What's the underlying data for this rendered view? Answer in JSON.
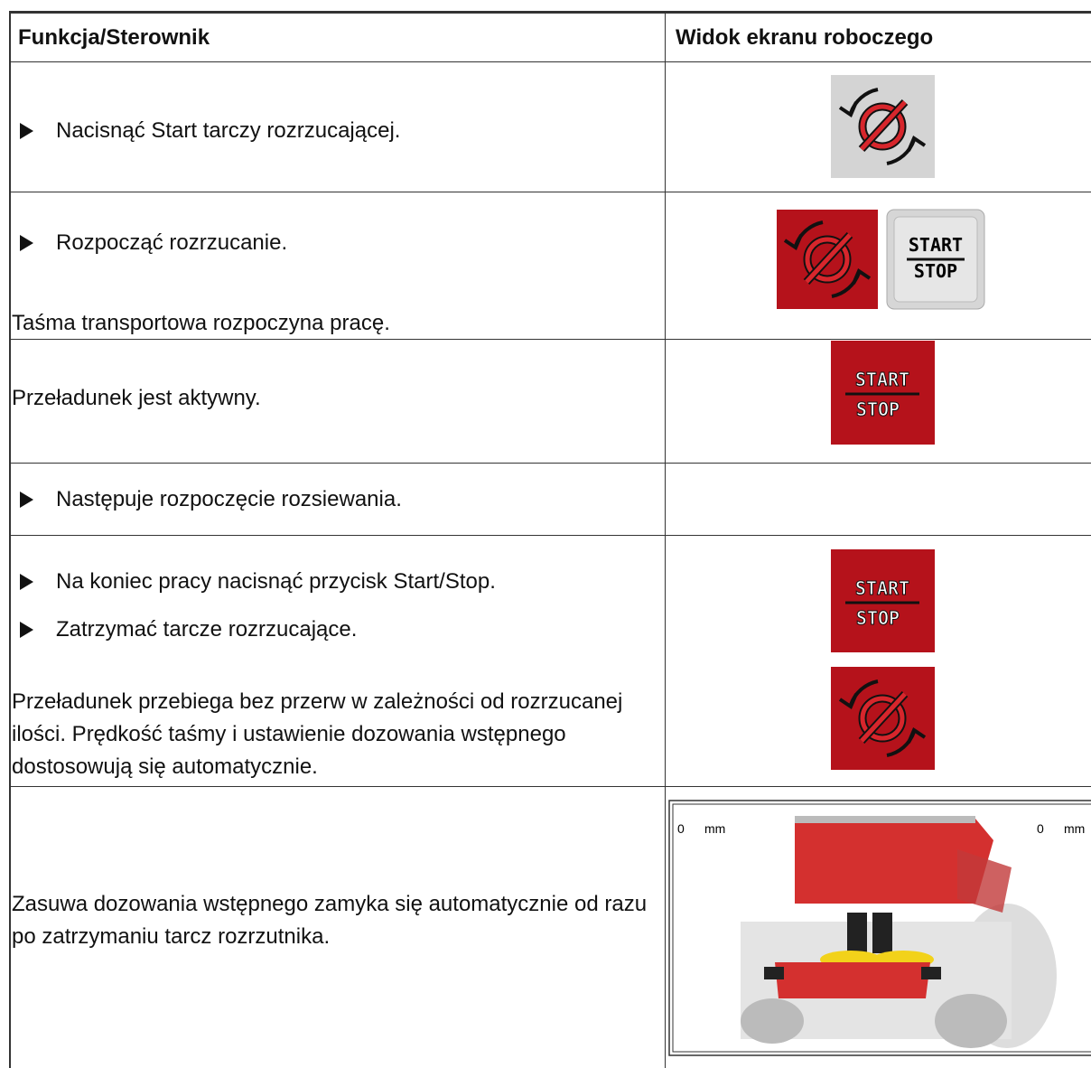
{
  "header": {
    "col1": "Funkcja/Sterownik",
    "col2": "Widok ekranu roboczego"
  },
  "rows": [
    {
      "steps": [
        "Nacisnąć Start tarczy rozrzucającej."
      ]
    },
    {
      "steps": [
        "Rozpocząć rozrzucanie."
      ],
      "note": "Taśma transportowa rozpoczyna pracę."
    },
    {
      "note": "Przeładunek jest aktywny."
    },
    {
      "steps": [
        "Następuje rozpoczęcie rozsiewania."
      ]
    },
    {
      "steps": [
        "Na koniec pracy nacisnąć przycisk Start/Stop.",
        "Zatrzymać tarcze rozrzucające."
      ],
      "note": "Przeładunek przebiega bez przerw w zależności od rozrzucanej ilości. Prędkość taśmy i ustawienie dozowania wstępnego dostosowują się automatycznie."
    },
    {
      "note": "Zasuwa dozowania wstępnego zamyka się automatycznie od razu po zatrzymaniu tarcz rozrzutnika."
    }
  ],
  "icon_text": {
    "start": "START",
    "stop": "STOP"
  },
  "screen": {
    "left_value": "0",
    "right_value": "0",
    "unit": "mm"
  }
}
